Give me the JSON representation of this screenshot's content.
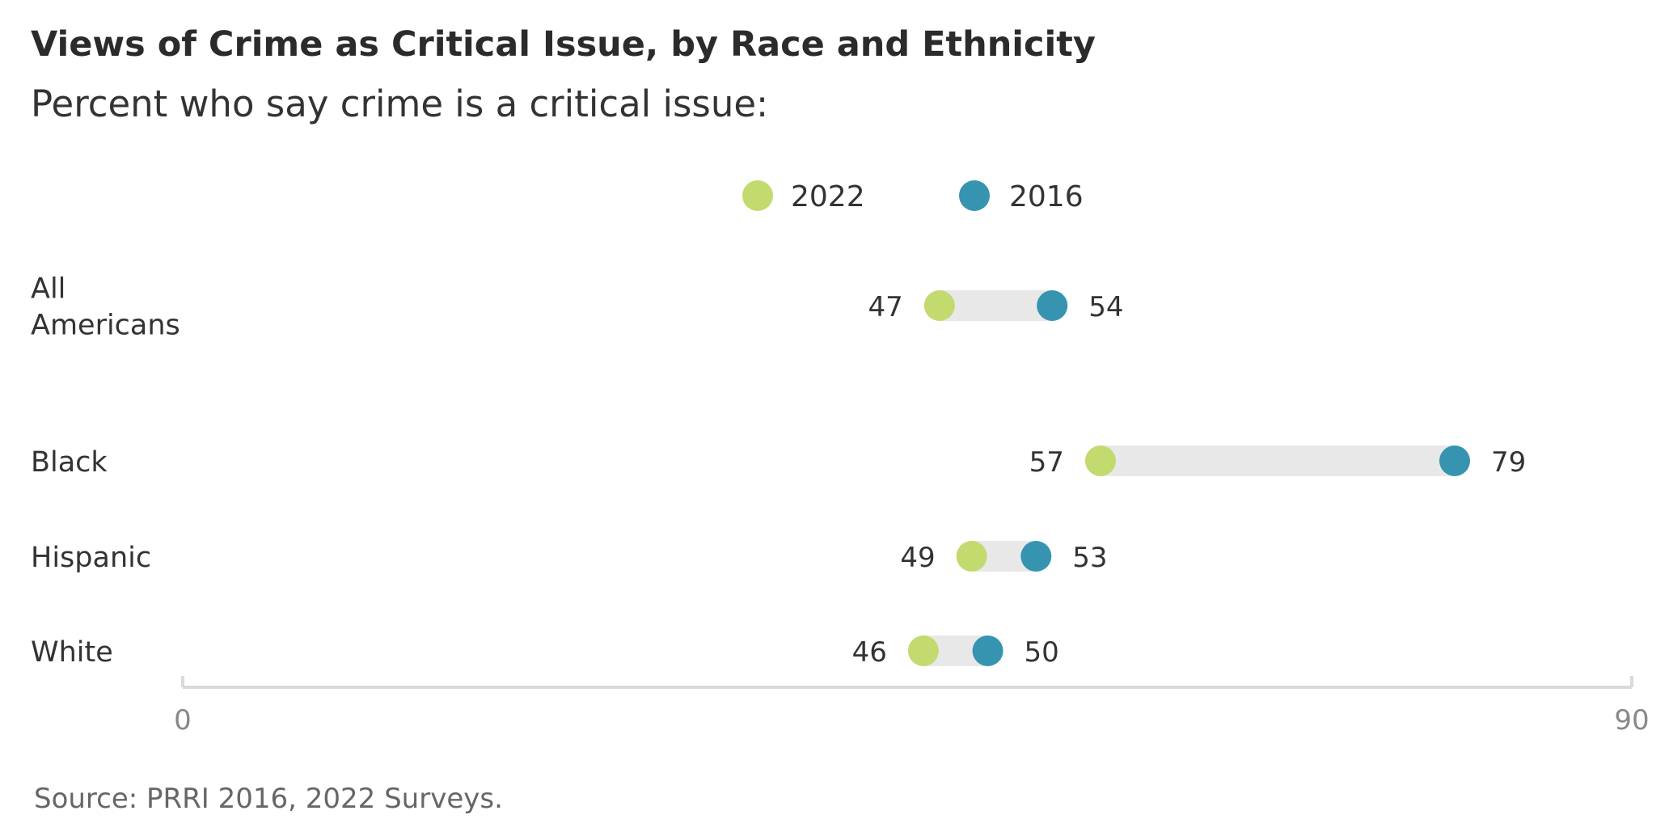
{
  "chart_data": {
    "type": "dumbbell",
    "title": "Views of Crime as Critical Issue, by Race and Ethnicity",
    "subtitle": "Percent who say crime is a critical issue:",
    "source": "Source: PRRI 2016, 2022 Surveys.",
    "xlim": [
      0,
      90
    ],
    "x_ticks": [
      "0",
      "90"
    ],
    "legend_position": "top-center",
    "colors": {
      "2022": "#c2da6e",
      "2016": "#3694b1",
      "connector": "#e8e8e8",
      "axis": "#d9d9d9"
    },
    "series": [
      {
        "name": "2022",
        "values": [
          47,
          57,
          49,
          46
        ]
      },
      {
        "name": "2016",
        "values": [
          54,
          79,
          53,
          50
        ]
      }
    ],
    "categories": [
      {
        "label_lines": [
          "All",
          "Americans"
        ]
      },
      {
        "label_lines": [
          "Black"
        ]
      },
      {
        "label_lines": [
          "Hispanic"
        ]
      },
      {
        "label_lines": [
          "White"
        ]
      }
    ]
  }
}
